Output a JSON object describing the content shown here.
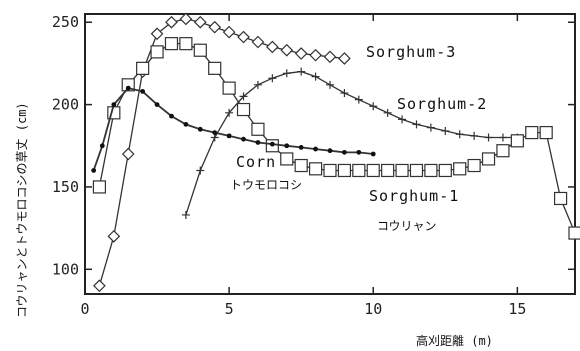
{
  "chart_data": {
    "type": "line",
    "xlabel": "高刈距離 (m)",
    "ylabel": "コウリャンとトウモロコシの草丈 (cm)",
    "xlim": [
      0,
      17
    ],
    "ylim": [
      85,
      255
    ],
    "xticks": [
      0,
      5,
      10,
      15
    ],
    "yticks": [
      100,
      150,
      200,
      250
    ],
    "grid": false,
    "series": [
      {
        "name": "Sorghum-3",
        "marker": "diamond",
        "x": [
          0.5,
          1.0,
          1.5,
          2.0,
          2.5,
          3.0,
          3.5,
          4.0,
          4.5,
          5.0,
          5.5,
          6.0,
          6.5,
          7.0,
          7.5,
          8.0,
          8.5,
          9.0
        ],
        "y": [
          90,
          120,
          170,
          220,
          243,
          250,
          252,
          250,
          247,
          244,
          241,
          238,
          235,
          233,
          231,
          230,
          229,
          228
        ]
      },
      {
        "name": "Sorghum-2",
        "marker": "plus",
        "x": [
          3.5,
          4.0,
          4.5,
          5.0,
          5.5,
          6.0,
          6.5,
          7.0,
          7.5,
          8.0,
          8.5,
          9.0,
          9.5,
          10.0,
          10.5,
          11.0,
          11.5,
          12.0,
          12.5,
          13.0,
          13.5,
          14.0,
          14.5,
          15.0
        ],
        "y": [
          133,
          160,
          180,
          195,
          205,
          212,
          216,
          219,
          220,
          217,
          212,
          207,
          203,
          199,
          195,
          191,
          188,
          186,
          184,
          182,
          181,
          180,
          180,
          180
        ]
      },
      {
        "name": "Sorghum-1",
        "marker": "square",
        "x": [
          0.5,
          1.0,
          1.5,
          2.0,
          2.5,
          3.0,
          3.5,
          4.0,
          4.5,
          5.0,
          5.5,
          6.0,
          6.5,
          7.0,
          7.5,
          8.0,
          8.5,
          9.0,
          9.5,
          10.0,
          10.5,
          11.0,
          11.5,
          12.0,
          12.5,
          13.0,
          13.5,
          14.0,
          14.5,
          15.0,
          15.5,
          16.0,
          16.5,
          17.0
        ],
        "y": [
          150,
          195,
          212,
          222,
          232,
          237,
          237,
          233,
          222,
          210,
          197,
          185,
          175,
          167,
          163,
          161,
          160,
          160,
          160,
          160,
          160,
          160,
          160,
          160,
          160,
          161,
          163,
          167,
          172,
          178,
          183,
          183,
          143,
          122
        ]
      },
      {
        "name": "Corn",
        "marker": "dot",
        "x": [
          0.3,
          0.6,
          1.0,
          1.5,
          2.0,
          2.5,
          3.0,
          3.5,
          4.0,
          4.5,
          5.0,
          5.5,
          6.0,
          6.5,
          7.0,
          7.5,
          8.0,
          8.5,
          9.0,
          9.5,
          10.0
        ],
        "y": [
          160,
          175,
          200,
          210,
          208,
          200,
          193,
          188,
          185,
          183,
          181,
          179,
          177,
          176,
          175,
          174,
          173,
          172,
          171,
          171,
          170
        ]
      }
    ],
    "annotations": [
      {
        "text": "Sorghum-3"
      },
      {
        "text": "Sorghum-2"
      },
      {
        "text": "Sorghum-1"
      },
      {
        "text": "コウリャン"
      },
      {
        "text": "Corn"
      },
      {
        "text": "トウモロコシ"
      }
    ]
  }
}
